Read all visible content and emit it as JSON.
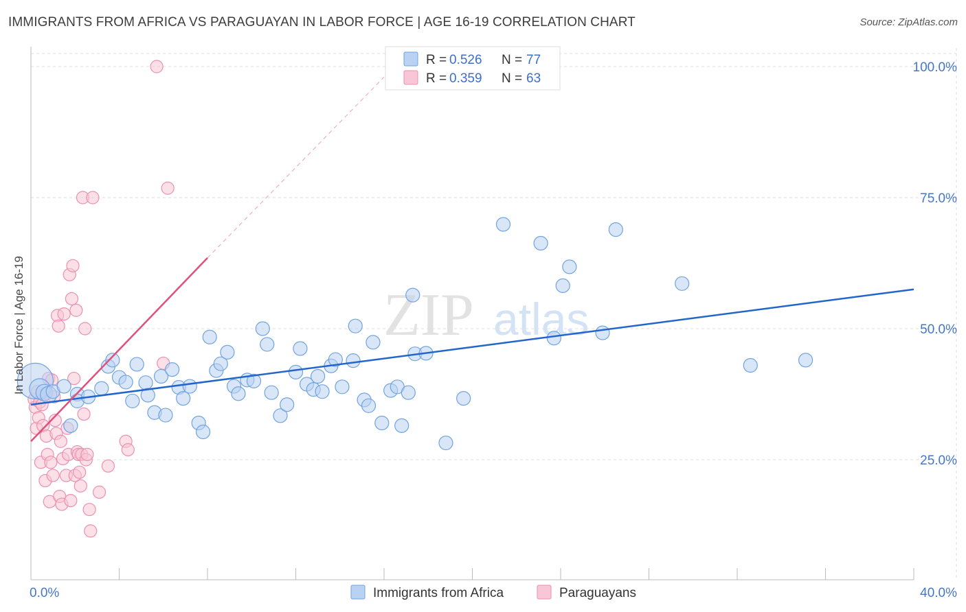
{
  "header": {
    "title": "IMMIGRANTS FROM AFRICA VS PARAGUAYAN IN LABOR FORCE | AGE 16-19 CORRELATION CHART",
    "source": "Source: ZipAtlas.com"
  },
  "colors": {
    "blue": "#6fa3e0",
    "blue_fill": "#b9d1f2",
    "blue_line": "#2266cc",
    "pink": "#ec8fb0",
    "pink_fill": "#f8c6d6",
    "pink_line": "#e0507a",
    "axis_text": "#4477cc",
    "grid": "#dddddd"
  },
  "watermark": {
    "zip": "ZIP",
    "atlas": "atlas"
  },
  "legend": {
    "rows": [
      {
        "r_label": "R = ",
        "r_value": "0.526",
        "n_label": "N = ",
        "n_value": "77"
      },
      {
        "r_label": "R = ",
        "r_value": "0.359",
        "n_label": "N = ",
        "n_value": "63"
      }
    ]
  },
  "chart_data": {
    "type": "scatter",
    "title": "IMMIGRANTS FROM AFRICA VS PARAGUAYAN IN LABOR FORCE | AGE 16-19 CORRELATION CHART",
    "xlabel": "",
    "ylabel": "In Labor Force | Age 16-19",
    "xlim": [
      0,
      40
    ],
    "ylim": [
      0,
      105
    ],
    "x_tick_labels": [
      {
        "value": 0,
        "label": "0.0%"
      },
      {
        "value": 40,
        "label": "40.0%"
      }
    ],
    "y_tick_labels": [
      {
        "value": 25,
        "label": "25.0%"
      },
      {
        "value": 50,
        "label": "50.0%"
      },
      {
        "value": 75,
        "label": "75.0%"
      },
      {
        "value": 100,
        "label": "100.0%"
      }
    ],
    "series": [
      {
        "name": "Immigrants from Africa",
        "color": "blue",
        "R": 0.526,
        "N": 77,
        "trend": {
          "x0": 0,
          "y0": 35.5,
          "x1": 40,
          "y1": 57.5
        },
        "points": [
          [
            0.2,
            40,
            26
          ],
          [
            0.4,
            38.5,
            15
          ],
          [
            0.6,
            37.8,
            12
          ],
          [
            0.8,
            37.4,
            12
          ],
          [
            1.0,
            38.0,
            10
          ],
          [
            1.5,
            39.0,
            10
          ],
          [
            1.8,
            31.5,
            10
          ],
          [
            2.1,
            37.5,
            10
          ],
          [
            2.1,
            36.2,
            10
          ],
          [
            2.6,
            37.0,
            10
          ],
          [
            3.2,
            38.6,
            10
          ],
          [
            3.5,
            42.8,
            10
          ],
          [
            3.7,
            44.0,
            10
          ],
          [
            4.0,
            40.7,
            10
          ],
          [
            4.3,
            39.8,
            10
          ],
          [
            4.6,
            36.2,
            10
          ],
          [
            4.8,
            43.2,
            10
          ],
          [
            5.2,
            39.7,
            10
          ],
          [
            5.3,
            37.3,
            10
          ],
          [
            5.6,
            34.0,
            10
          ],
          [
            5.9,
            40.9,
            10
          ],
          [
            6.1,
            33.5,
            10
          ],
          [
            6.4,
            42.2,
            10
          ],
          [
            6.7,
            38.8,
            10
          ],
          [
            6.9,
            36.7,
            10
          ],
          [
            7.2,
            39.0,
            10
          ],
          [
            7.6,
            32.0,
            10
          ],
          [
            7.8,
            30.3,
            10
          ],
          [
            8.1,
            48.4,
            10
          ],
          [
            8.4,
            42.0,
            10
          ],
          [
            8.6,
            43.3,
            10
          ],
          [
            8.9,
            45.5,
            10
          ],
          [
            9.2,
            39.0,
            10
          ],
          [
            9.4,
            37.6,
            10
          ],
          [
            9.8,
            40.2,
            10
          ],
          [
            10.1,
            40.0,
            10
          ],
          [
            10.5,
            50.0,
            10
          ],
          [
            10.7,
            47.0,
            10
          ],
          [
            10.9,
            37.8,
            10
          ],
          [
            11.3,
            33.4,
            10
          ],
          [
            11.6,
            35.5,
            10
          ],
          [
            12.0,
            41.7,
            10
          ],
          [
            12.2,
            46.2,
            10
          ],
          [
            12.5,
            39.4,
            10
          ],
          [
            12.8,
            38.4,
            10
          ],
          [
            13.0,
            40.9,
            10
          ],
          [
            13.2,
            38.0,
            10
          ],
          [
            13.6,
            42.9,
            10
          ],
          [
            13.8,
            44.1,
            10
          ],
          [
            14.1,
            38.9,
            10
          ],
          [
            14.6,
            43.9,
            10
          ],
          [
            14.7,
            50.5,
            10
          ],
          [
            15.1,
            36.4,
            10
          ],
          [
            15.3,
            35.3,
            10
          ],
          [
            15.5,
            47.4,
            10
          ],
          [
            15.9,
            32.0,
            10
          ],
          [
            16.3,
            38.2,
            10
          ],
          [
            16.6,
            38.9,
            10
          ],
          [
            16.8,
            31.5,
            10
          ],
          [
            17.1,
            37.8,
            10
          ],
          [
            17.3,
            56.4,
            10
          ],
          [
            17.4,
            45.2,
            10
          ],
          [
            17.9,
            45.3,
            10
          ],
          [
            18.8,
            28.2,
            10
          ],
          [
            19.6,
            36.7,
            10
          ],
          [
            21.4,
            69.9,
            10
          ],
          [
            23.1,
            66.3,
            10
          ],
          [
            23.7,
            48.2,
            10
          ],
          [
            24.1,
            58.2,
            10
          ],
          [
            24.4,
            61.8,
            10
          ],
          [
            25.9,
            49.2,
            10
          ],
          [
            26.5,
            68.9,
            10
          ],
          [
            29.5,
            58.6,
            10
          ],
          [
            32.6,
            43.0,
            10
          ],
          [
            35.1,
            44.0,
            10
          ]
        ]
      },
      {
        "name": "Paraguayans",
        "color": "pink",
        "R": 0.359,
        "N": 63,
        "trend": {
          "x0": 0,
          "y0": 28.5,
          "x1": 8,
          "y1": 63.5
        },
        "trend_dashed_to": {
          "x": 16,
          "y": 98
        },
        "points": [
          [
            0.15,
            36.5,
            9
          ],
          [
            0.2,
            35.0,
            9
          ],
          [
            0.25,
            31.0,
            9
          ],
          [
            0.3,
            38.0,
            9
          ],
          [
            0.35,
            33.0,
            9
          ],
          [
            0.4,
            36.0,
            9
          ],
          [
            0.45,
            24.5,
            9
          ],
          [
            0.5,
            35.5,
            9
          ],
          [
            0.55,
            31.5,
            9
          ],
          [
            0.6,
            37.5,
            9
          ],
          [
            0.65,
            21.0,
            9
          ],
          [
            0.7,
            29.5,
            9
          ],
          [
            0.75,
            26.0,
            9
          ],
          [
            0.8,
            40.5,
            9
          ],
          [
            0.85,
            17.0,
            9
          ],
          [
            0.9,
            24.5,
            9
          ],
          [
            0.95,
            40.2,
            9
          ],
          [
            1.0,
            22.0,
            9
          ],
          [
            1.05,
            37.0,
            9
          ],
          [
            1.1,
            32.5,
            9
          ],
          [
            1.15,
            30.0,
            9
          ],
          [
            1.2,
            52.5,
            9
          ],
          [
            1.25,
            50.5,
            9
          ],
          [
            1.3,
            18.0,
            9
          ],
          [
            1.35,
            28.5,
            9
          ],
          [
            1.4,
            16.5,
            9
          ],
          [
            1.45,
            25.2,
            9
          ],
          [
            1.5,
            52.8,
            9
          ],
          [
            1.6,
            22.0,
            9
          ],
          [
            1.65,
            31.0,
            9
          ],
          [
            1.7,
            26.0,
            9
          ],
          [
            1.75,
            60.3,
            9
          ],
          [
            1.8,
            17.2,
            9
          ],
          [
            1.85,
            55.7,
            9
          ],
          [
            1.9,
            62.0,
            9
          ],
          [
            1.95,
            40.5,
            9
          ],
          [
            2.0,
            22.0,
            9
          ],
          [
            2.05,
            53.5,
            9
          ],
          [
            2.1,
            26.5,
            9
          ],
          [
            2.15,
            26.0,
            9
          ],
          [
            2.2,
            22.6,
            9
          ],
          [
            2.25,
            20.0,
            9
          ],
          [
            2.3,
            26.0,
            9
          ],
          [
            2.35,
            75.0,
            9
          ],
          [
            2.4,
            33.7,
            9
          ],
          [
            2.45,
            50.0,
            9
          ],
          [
            2.5,
            25.0,
            9
          ],
          [
            2.55,
            26.0,
            9
          ],
          [
            2.65,
            15.5,
            9
          ],
          [
            2.7,
            11.4,
            9
          ],
          [
            2.8,
            75.0,
            9
          ],
          [
            3.1,
            18.8,
            9
          ],
          [
            3.5,
            23.8,
            9
          ],
          [
            4.3,
            28.5,
            9
          ],
          [
            4.4,
            26.9,
            9
          ],
          [
            5.7,
            100.0,
            9
          ],
          [
            6.0,
            43.4,
            9
          ],
          [
            6.2,
            76.8,
            9
          ]
        ]
      }
    ],
    "legend": [
      "Immigrants from Africa",
      "Paraguayans"
    ]
  }
}
